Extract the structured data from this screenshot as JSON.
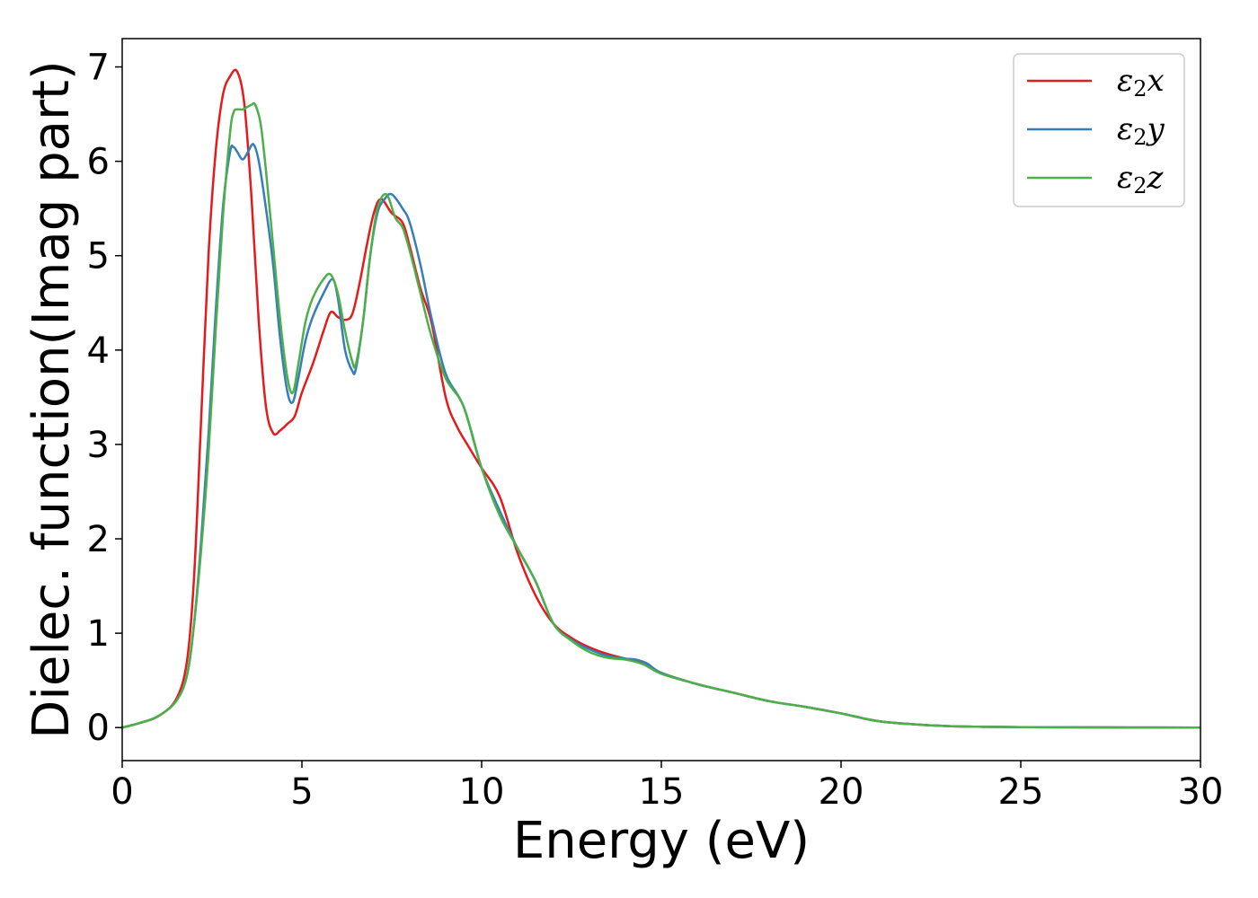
{
  "chart_data": {
    "type": "line",
    "title": "",
    "xlabel": "Energy (eV)",
    "ylabel": "Dielec. function(Imag part)",
    "xlim": [
      0,
      30
    ],
    "ylim": [
      -0.35,
      7.3
    ],
    "xticks": [
      0,
      5,
      10,
      15,
      20,
      25,
      30
    ],
    "yticks": [
      0,
      1,
      2,
      3,
      4,
      5,
      6,
      7
    ],
    "grid": false,
    "legend_position": "top-right",
    "series": [
      {
        "name": "ε2x",
        "legend_base": "ε",
        "legend_sub": "2",
        "legend_suffix": "x",
        "color": "#e41a1c",
        "x": [
          0,
          0.5,
          1.0,
          1.5,
          1.8,
          2.0,
          2.2,
          2.4,
          2.6,
          2.8,
          3.0,
          3.2,
          3.4,
          3.6,
          3.8,
          4.0,
          4.2,
          4.4,
          4.6,
          4.8,
          5.0,
          5.3,
          5.6,
          5.8,
          6.0,
          6.2,
          6.4,
          6.6,
          6.8,
          7.0,
          7.2,
          7.5,
          7.8,
          8.0,
          8.3,
          8.6,
          9.0,
          9.3,
          9.6,
          10.0,
          10.5,
          11.0,
          11.5,
          12.0,
          12.5,
          13.0,
          13.5,
          14.0,
          14.5,
          15.0,
          16.0,
          17.0,
          18.0,
          19.0,
          20.0,
          21.0,
          22.0,
          23.0,
          24.0,
          25.0,
          26.0,
          28.0,
          30.0
        ],
        "y": [
          0.0,
          0.05,
          0.12,
          0.3,
          0.7,
          1.6,
          3.3,
          5.0,
          6.1,
          6.7,
          6.9,
          6.95,
          6.6,
          5.6,
          4.3,
          3.4,
          3.12,
          3.15,
          3.22,
          3.3,
          3.55,
          3.85,
          4.2,
          4.4,
          4.35,
          4.32,
          4.38,
          4.7,
          5.1,
          5.45,
          5.6,
          5.45,
          5.35,
          5.1,
          4.65,
          4.3,
          3.5,
          3.2,
          3.0,
          2.75,
          2.45,
          1.85,
          1.4,
          1.1,
          0.95,
          0.85,
          0.78,
          0.73,
          0.68,
          0.58,
          0.46,
          0.37,
          0.28,
          0.22,
          0.15,
          0.07,
          0.035,
          0.015,
          0.008,
          0.005,
          0.003,
          0.001,
          0.0
        ]
      },
      {
        "name": "ε2y",
        "legend_base": "ε",
        "legend_sub": "2",
        "legend_suffix": "y",
        "color": "#377eb8",
        "x": [
          0,
          0.5,
          1.0,
          1.5,
          1.8,
          2.0,
          2.2,
          2.4,
          2.6,
          2.8,
          3.0,
          3.1,
          3.2,
          3.35,
          3.5,
          3.65,
          3.8,
          4.0,
          4.2,
          4.4,
          4.6,
          4.75,
          4.9,
          5.1,
          5.3,
          5.6,
          5.85,
          6.0,
          6.2,
          6.4,
          6.5,
          6.7,
          6.9,
          7.1,
          7.3,
          7.5,
          7.8,
          8.0,
          8.3,
          8.6,
          9.0,
          9.5,
          10.0,
          10.5,
          11.0,
          11.5,
          12.0,
          12.5,
          13.0,
          13.5,
          14.0,
          14.3,
          14.6,
          15.0,
          16.0,
          17.0,
          18.0,
          19.0,
          20.0,
          21.0,
          22.0,
          23.0,
          24.0,
          25.0,
          26.0,
          28.0,
          30.0
        ],
        "y": [
          0.0,
          0.05,
          0.12,
          0.28,
          0.55,
          1.1,
          2.0,
          3.1,
          4.4,
          5.5,
          6.1,
          6.15,
          6.1,
          6.02,
          6.1,
          6.18,
          6.0,
          5.5,
          4.9,
          4.1,
          3.55,
          3.45,
          3.7,
          4.1,
          4.35,
          4.6,
          4.75,
          4.55,
          4.0,
          3.78,
          3.8,
          4.3,
          5.0,
          5.45,
          5.6,
          5.65,
          5.5,
          5.35,
          4.9,
          4.35,
          3.75,
          3.4,
          2.75,
          2.3,
          1.9,
          1.55,
          1.1,
          0.93,
          0.83,
          0.76,
          0.73,
          0.72,
          0.68,
          0.58,
          0.46,
          0.37,
          0.28,
          0.22,
          0.15,
          0.07,
          0.035,
          0.015,
          0.008,
          0.005,
          0.003,
          0.001,
          0.0
        ]
      },
      {
        "name": "ε2z",
        "legend_base": "ε",
        "legend_sub": "2",
        "legend_suffix": "z",
        "color": "#4daf4a",
        "x": [
          0,
          0.5,
          1.0,
          1.5,
          1.8,
          2.0,
          2.2,
          2.4,
          2.6,
          2.8,
          3.0,
          3.1,
          3.2,
          3.35,
          3.5,
          3.6,
          3.7,
          3.85,
          4.0,
          4.2,
          4.4,
          4.6,
          4.75,
          4.9,
          5.1,
          5.3,
          5.6,
          5.8,
          6.0,
          6.2,
          6.4,
          6.5,
          6.7,
          6.9,
          7.1,
          7.35,
          7.6,
          7.8,
          8.0,
          8.3,
          8.6,
          9.0,
          9.5,
          10.0,
          10.5,
          11.0,
          11.5,
          12.0,
          12.5,
          13.0,
          13.5,
          14.0,
          14.5,
          15.0,
          16.0,
          17.0,
          18.0,
          19.0,
          20.0,
          21.0,
          22.0,
          23.0,
          24.0,
          25.0,
          26.0,
          28.0,
          30.0
        ],
        "y": [
          0.0,
          0.05,
          0.12,
          0.28,
          0.55,
          1.1,
          1.9,
          2.9,
          4.2,
          5.4,
          6.3,
          6.52,
          6.55,
          6.55,
          6.58,
          6.6,
          6.6,
          6.4,
          5.9,
          5.1,
          4.3,
          3.7,
          3.55,
          3.85,
          4.3,
          4.55,
          4.75,
          4.8,
          4.6,
          4.2,
          3.88,
          3.85,
          4.3,
          5.0,
          5.5,
          5.65,
          5.4,
          5.3,
          5.05,
          4.6,
          4.15,
          3.7,
          3.4,
          2.75,
          2.25,
          1.9,
          1.55,
          1.1,
          0.92,
          0.8,
          0.74,
          0.72,
          0.67,
          0.57,
          0.46,
          0.37,
          0.28,
          0.22,
          0.15,
          0.07,
          0.035,
          0.015,
          0.008,
          0.005,
          0.003,
          0.001,
          0.0
        ]
      }
    ]
  }
}
